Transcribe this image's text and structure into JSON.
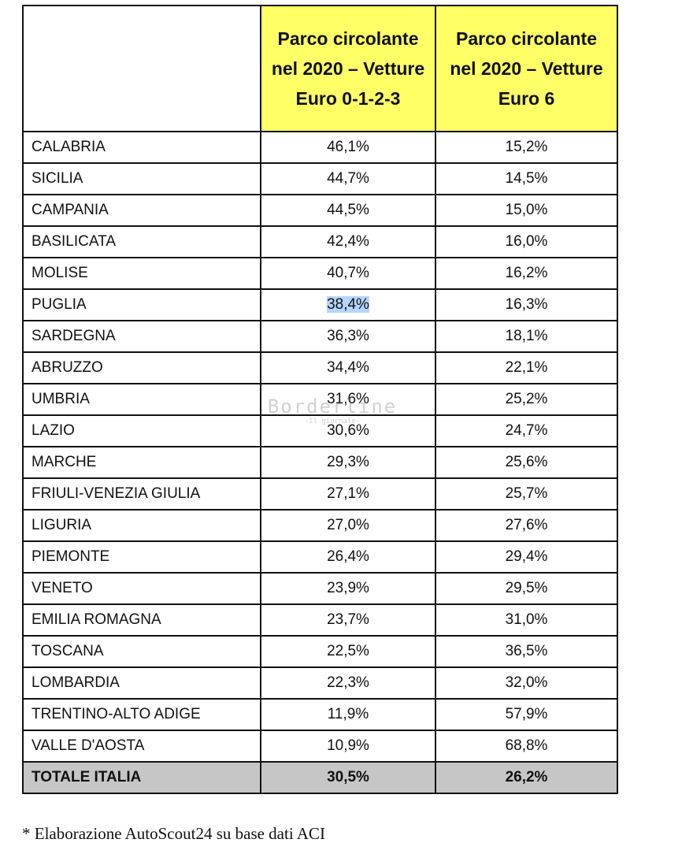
{
  "table": {
    "header": [
      "",
      "Parco circolante nel 2020 – Vetture Euro 0-1-2-3",
      "Parco circolante nel 2020 – Vetture Euro 6"
    ],
    "rows": [
      [
        "CALABRIA",
        "46,1%",
        "15,2%"
      ],
      [
        "SICILIA",
        "44,7%",
        "14,5%"
      ],
      [
        "CAMPANIA",
        "44,5%",
        "15,0%"
      ],
      [
        "BASILICATA",
        "42,4%",
        "16,0%"
      ],
      [
        "MOLISE",
        "40,7%",
        "16,2%"
      ],
      [
        "PUGLIA",
        "38,4%",
        "16,3%"
      ],
      [
        "SARDEGNA",
        "36,3%",
        "18,1%"
      ],
      [
        "ABRUZZO",
        "34,4%",
        "22,1%"
      ],
      [
        "UMBRIA",
        "31,6%",
        "25,2%"
      ],
      [
        "LAZIO",
        "30,6%",
        "24,7%"
      ],
      [
        "MARCHE",
        "29,3%",
        "25,6%"
      ],
      [
        "FRIULI-VENEZIA GIULIA",
        "27,1%",
        "25,7%"
      ],
      [
        "LIGURIA",
        "27,0%",
        "27,6%"
      ],
      [
        "PIEMONTE",
        "26,4%",
        "29,4%"
      ],
      [
        "VENETO",
        "23,9%",
        "29,5%"
      ],
      [
        "EMILIA ROMAGNA",
        "23,7%",
        "31,0%"
      ],
      [
        "TOSCANA",
        "22,5%",
        "36,5%"
      ],
      [
        "LOMBARDIA",
        "22,3%",
        "32,0%"
      ],
      [
        "TRENTINO-ALTO ADIGE",
        "11,9%",
        "57,9%"
      ],
      [
        "VALLE D'AOSTA",
        "10,9%",
        "68,8%"
      ]
    ],
    "total": [
      "TOTALE ITALIA",
      "30,5%",
      "26,2%"
    ]
  },
  "watermark": {
    "title": "Borderline",
    "subtitle": "-Il giornale-"
  },
  "note": "* Elaborazione AutoScout24 su base dati ACI"
}
